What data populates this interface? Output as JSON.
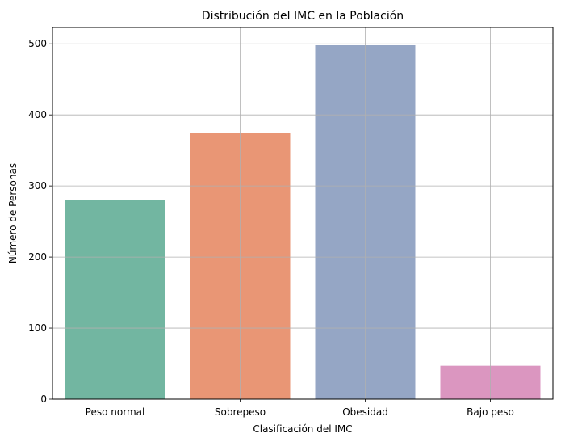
{
  "chart_data": {
    "type": "bar",
    "title": "Distribución del IMC en la Población",
    "xlabel": "Clasificación del  IMC",
    "ylabel": "Número de Personas",
    "categories": [
      "Peso normal",
      "Sobrepeso",
      "Obesidad",
      "Bajo peso"
    ],
    "values": [
      280,
      375,
      498,
      47
    ],
    "colors": [
      "#72b6a1",
      "#e99675",
      "#95a6c5",
      "#db96c0"
    ],
    "ylim": [
      0,
      523
    ],
    "yticks": [
      0,
      100,
      200,
      300,
      400,
      500
    ],
    "grid": true,
    "grid_color": "#b0b0b0"
  }
}
